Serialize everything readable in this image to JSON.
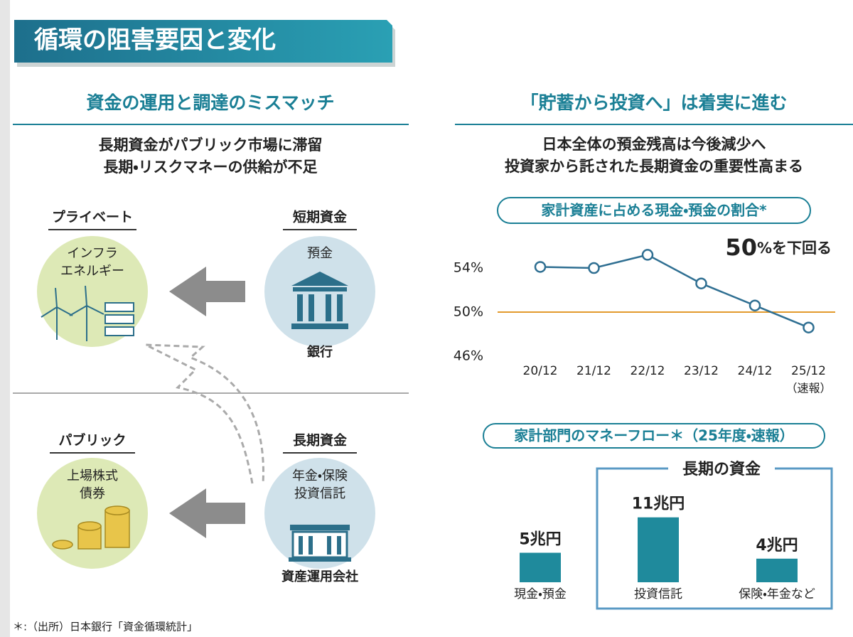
{
  "header": {
    "title": "循環の阻害要因と変化"
  },
  "left": {
    "title": "資金の運用と調達のミスマッチ",
    "subtitle": [
      "長期資金がパブリック市場に滞留",
      "長期・リスクマネーの供給が不足"
    ],
    "diagram": {
      "top_left": {
        "heading": "プライベート",
        "label": [
          "インフラ",
          "エネルギー"
        ]
      },
      "top_right": {
        "heading": "短期資金",
        "label": [
          "預金"
        ],
        "caption": "銀行"
      },
      "bottom_left": {
        "heading": "パブリック",
        "label": [
          "上場株式",
          "債券"
        ]
      },
      "bottom_right": {
        "heading": "長期資金",
        "label": [
          "年金・保険",
          "投資信託"
        ],
        "caption": "資産運用会社"
      }
    }
  },
  "right": {
    "title": "「貯蓄から投資へ」は着実に進む",
    "subtitle": [
      "日本全体の預金残高は今後減少へ",
      "投資家から託された長期資金の重要性高まる"
    ]
  },
  "chart_data": [
    {
      "type": "line",
      "title": "家計資産に占める現金・預金の割合*",
      "annotation": [
        "50",
        "%を下回る"
      ],
      "categories": [
        "20/12",
        "21/12",
        "22/12",
        "23/12",
        "24/12",
        "25/12"
      ],
      "category_notes": [
        null,
        null,
        null,
        null,
        null,
        "（速報）"
      ],
      "values": [
        54.1,
        54.0,
        55.2,
        52.6,
        50.6,
        48.6
      ],
      "color": "#2f6f92",
      "ylim": [
        46,
        54
      ],
      "yticks": [
        {
          "value": 46,
          "label": "46%"
        },
        {
          "value": 50,
          "label": "50%"
        },
        {
          "value": 54,
          "label": "54%"
        }
      ],
      "reference_line": {
        "value": 50,
        "color": "#e39a2c"
      }
    },
    {
      "type": "bar",
      "title": "家計部門のマネーフロー＊（25年度・速報）",
      "categories": [
        "現金・預金",
        "投資信託",
        "保険・年金など"
      ],
      "values": [
        5,
        11,
        4
      ],
      "value_labels": [
        "5兆円",
        "11兆円",
        "4兆円"
      ],
      "color": "#1f8a9c",
      "group_label": "長期の資金"
    }
  ],
  "footnote": "＊:（出所）日本銀行「資金循環統計」"
}
